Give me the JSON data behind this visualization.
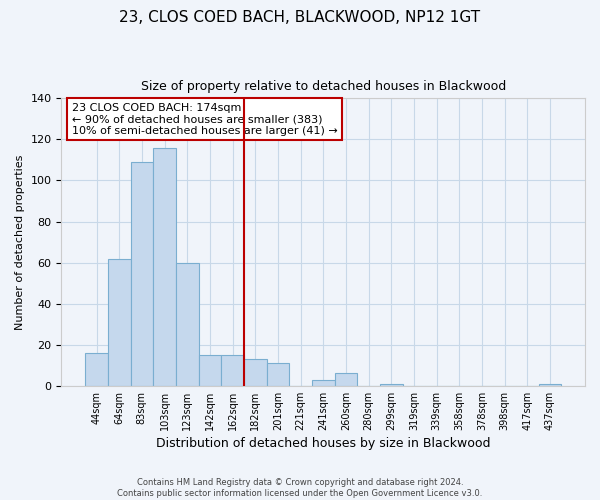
{
  "title": "23, CLOS COED BACH, BLACKWOOD, NP12 1GT",
  "subtitle": "Size of property relative to detached houses in Blackwood",
  "xlabel": "Distribution of detached houses by size in Blackwood",
  "ylabel": "Number of detached properties",
  "bar_color": "#c5d8ed",
  "bar_edge_color": "#7aaed0",
  "categories": [
    "44sqm",
    "64sqm",
    "83sqm",
    "103sqm",
    "123sqm",
    "142sqm",
    "162sqm",
    "182sqm",
    "201sqm",
    "221sqm",
    "241sqm",
    "260sqm",
    "280sqm",
    "299sqm",
    "319sqm",
    "339sqm",
    "358sqm",
    "378sqm",
    "398sqm",
    "417sqm",
    "437sqm"
  ],
  "values": [
    16,
    62,
    109,
    116,
    60,
    15,
    15,
    13,
    11,
    0,
    3,
    6,
    0,
    1,
    0,
    0,
    0,
    0,
    0,
    0,
    1
  ],
  "vline_x": 6.5,
  "vline_color": "#bb0000",
  "annotation_line1": "23 CLOS COED BACH: 174sqm",
  "annotation_line2": "← 90% of detached houses are smaller (383)",
  "annotation_line3": "10% of semi-detached houses are larger (41) →",
  "annotation_box_facecolor": "#ffffff",
  "annotation_box_edgecolor": "#bb0000",
  "ylim": [
    0,
    140
  ],
  "yticks": [
    0,
    20,
    40,
    60,
    80,
    100,
    120,
    140
  ],
  "footer_line1": "Contains HM Land Registry data © Crown copyright and database right 2024.",
  "footer_line2": "Contains public sector information licensed under the Open Government Licence v3.0.",
  "bg_color": "#f0f4fa",
  "grid_color": "#c8d8e8",
  "title_fontsize": 11,
  "subtitle_fontsize": 9,
  "xlabel_fontsize": 9,
  "ylabel_fontsize": 8,
  "ytick_fontsize": 8,
  "xtick_fontsize": 7,
  "annotation_fontsize": 8,
  "footer_fontsize": 6
}
